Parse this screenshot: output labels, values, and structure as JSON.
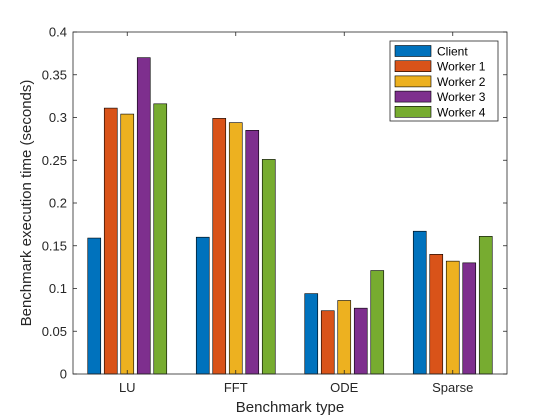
{
  "chart_data": {
    "type": "bar",
    "title": "",
    "xlabel": "Benchmark type",
    "ylabel": "Benchmark execution time (seconds)",
    "categories": [
      "LU",
      "FFT",
      "ODE",
      "Sparse"
    ],
    "ylim": [
      0,
      0.4
    ],
    "yticks": [
      "0",
      "0.05",
      "0.1",
      "0.15",
      "0.2",
      "0.25",
      "0.3",
      "0.35",
      "0.4"
    ],
    "ytick_values": [
      0,
      0.05,
      0.1,
      0.15,
      0.2,
      0.25,
      0.3,
      0.35,
      0.4
    ],
    "grid": false,
    "legend_position": "top-right",
    "series": [
      {
        "name": "Client",
        "color": "#0072BD",
        "values": [
          0.159,
          0.16,
          0.094,
          0.167
        ]
      },
      {
        "name": "Worker 1",
        "color": "#D95319",
        "values": [
          0.311,
          0.299,
          0.074,
          0.14
        ]
      },
      {
        "name": "Worker 2",
        "color": "#EDB120",
        "values": [
          0.304,
          0.294,
          0.086,
          0.132
        ]
      },
      {
        "name": "Worker 3",
        "color": "#7E2F8E",
        "values": [
          0.37,
          0.285,
          0.077,
          0.13
        ]
      },
      {
        "name": "Worker 4",
        "color": "#77AC30",
        "values": [
          0.316,
          0.251,
          0.121,
          0.161
        ]
      }
    ]
  }
}
